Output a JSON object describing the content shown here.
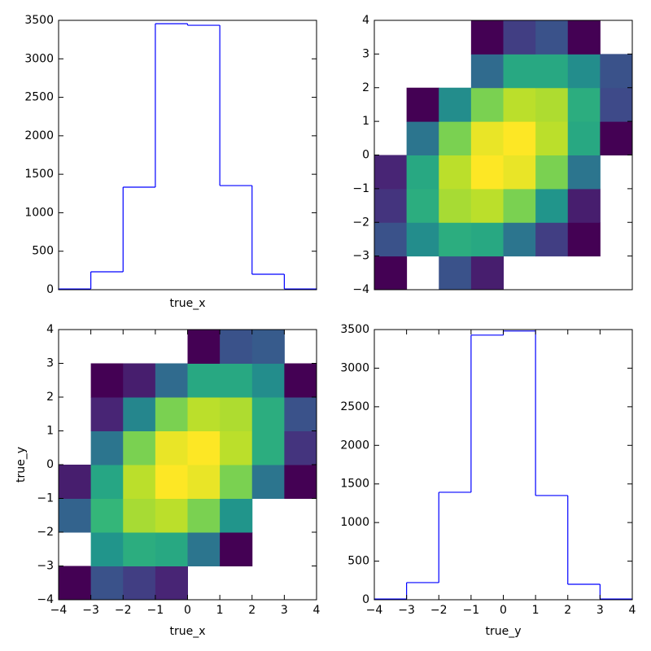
{
  "chart_data": [
    {
      "type": "histogram",
      "xlabel": "true_x",
      "color": "#0000ff",
      "bins": [
        -4,
        -3,
        -2,
        -1,
        0,
        1,
        2,
        3,
        4
      ],
      "values": [
        10,
        233,
        1332,
        3456,
        3436,
        1353,
        201,
        10
      ],
      "xlim": [
        -4,
        4
      ],
      "ylim": [
        0,
        3500
      ],
      "yticks": [
        0,
        500,
        1000,
        1500,
        2000,
        2500,
        3000,
        3500
      ]
    },
    {
      "type": "hist2d",
      "x_edges": [
        -4,
        -3,
        -2,
        -1,
        0,
        1,
        2,
        3,
        4
      ],
      "y_edges": [
        -4,
        -3,
        -2,
        -1,
        0,
        1,
        2,
        3,
        4
      ],
      "values": [
        [
          2,
          null,
          27,
          10,
          null,
          null,
          null,
          null
        ],
        [
          27,
          50,
          63,
          61,
          40,
          20,
          2,
          null
        ],
        [
          17,
          63,
          87,
          90,
          80,
          53,
          10,
          null
        ],
        [
          12,
          61,
          90,
          100,
          97,
          80,
          40,
          null
        ],
        [
          null,
          40,
          80,
          97,
          100,
          90,
          61,
          2
        ],
        [
          null,
          2,
          50,
          80,
          90,
          88,
          63,
          24
        ],
        [
          null,
          null,
          null,
          36,
          61,
          61,
          50,
          27
        ],
        [
          null,
          null,
          null,
          2,
          20,
          27,
          2,
          null
        ]
      ],
      "xlim": [
        -4,
        4
      ],
      "ylim": [
        -4,
        4
      ],
      "yticks": [
        {
          "value": -4,
          "label": "−4"
        },
        {
          "value": -3,
          "label": "−3"
        },
        {
          "value": -2,
          "label": "−2"
        },
        {
          "value": -1,
          "label": "−1"
        },
        0,
        1,
        2,
        3,
        4
      ]
    },
    {
      "type": "hist2d",
      "xlabel": "true_x",
      "ylabel": "true_y",
      "x_edges": [
        -4,
        -3,
        -2,
        -1,
        0,
        1,
        2,
        3,
        4
      ],
      "y_edges": [
        -4,
        -3,
        -2,
        -1,
        0,
        1,
        2,
        3,
        4
      ],
      "values": [
        [
          2,
          27,
          20,
          12,
          null,
          null,
          null,
          null
        ],
        [
          null,
          53,
          63,
          61,
          40,
          2,
          null,
          null
        ],
        [
          33,
          67,
          87,
          90,
          80,
          53,
          null,
          null
        ],
        [
          10,
          60,
          90,
          100,
          97,
          80,
          40,
          2
        ],
        [
          null,
          40,
          80,
          97,
          100,
          90,
          63,
          17
        ],
        [
          null,
          12,
          47,
          80,
          90,
          88,
          63,
          27
        ],
        [
          null,
          2,
          10,
          36,
          61,
          61,
          50,
          2
        ],
        [
          null,
          null,
          null,
          null,
          2,
          27,
          30,
          null
        ]
      ],
      "xlim": [
        -4,
        4
      ],
      "ylim": [
        -4,
        4
      ],
      "xticks": [
        {
          "value": -4,
          "label": "−4"
        },
        {
          "value": -3,
          "label": "−3"
        },
        {
          "value": -2,
          "label": "−2"
        },
        {
          "value": -1,
          "label": "−1"
        },
        0,
        1,
        2,
        3,
        4
      ],
      "yticks": [
        {
          "value": -4,
          "label": "−4"
        },
        {
          "value": -3,
          "label": "−3"
        },
        {
          "value": -2,
          "label": "−2"
        },
        {
          "value": -1,
          "label": "−1"
        },
        0,
        1,
        2,
        3,
        4
      ]
    },
    {
      "type": "histogram",
      "xlabel": "true_y",
      "color": "#0000ff",
      "bins": [
        -4,
        -3,
        -2,
        -1,
        0,
        1,
        2,
        3,
        4
      ],
      "values": [
        10,
        222,
        1392,
        3428,
        3481,
        1350,
        200,
        10
      ],
      "xlim": [
        -4,
        4
      ],
      "ylim": [
        0,
        3500
      ],
      "xticks": [
        {
          "value": -4,
          "label": "−4"
        },
        {
          "value": -3,
          "label": "−3"
        },
        {
          "value": -2,
          "label": "−2"
        },
        {
          "value": -1,
          "label": "−1"
        },
        0,
        1,
        2,
        3,
        4
      ],
      "yticks": [
        0,
        500,
        1000,
        1500,
        2000,
        2500,
        3000,
        3500
      ]
    }
  ]
}
